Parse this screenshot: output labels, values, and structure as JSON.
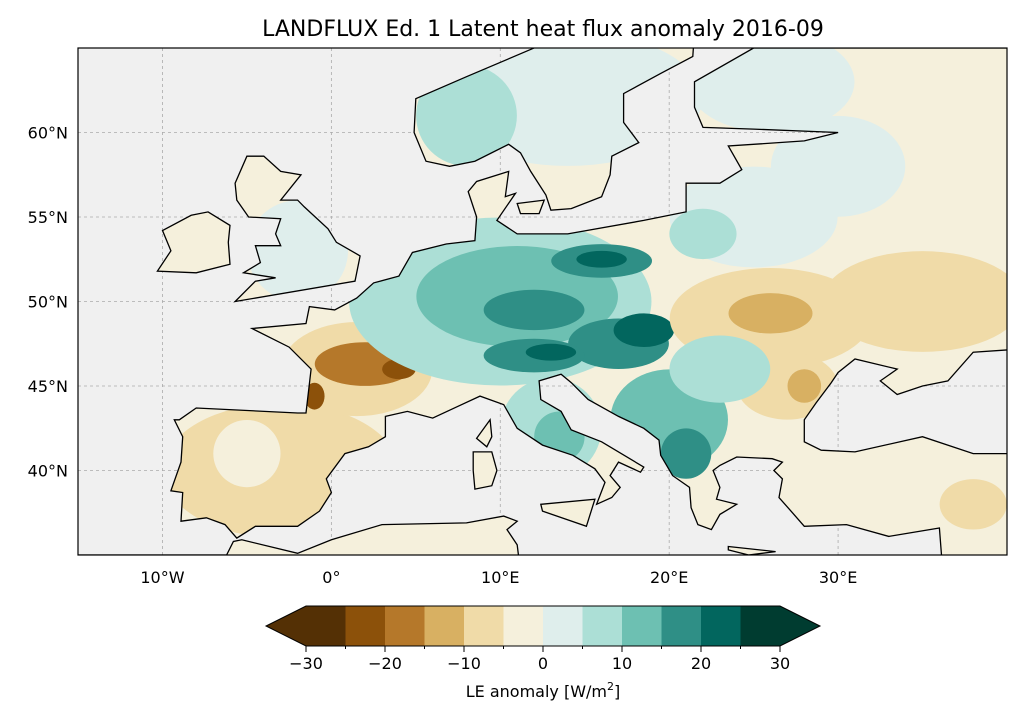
{
  "title": "LANDFLUX Ed. 1 Latent heat flux anomaly 2016-09",
  "map": {
    "extent": {
      "lon": [
        -15,
        40
      ],
      "lat": [
        35,
        65
      ]
    },
    "lon_ticks": [
      {
        "value": -10,
        "label": "10°W"
      },
      {
        "value": 0,
        "label": "0°"
      },
      {
        "value": 10,
        "label": "10°E"
      },
      {
        "value": 20,
        "label": "20°E"
      },
      {
        "value": 30,
        "label": "30°E"
      }
    ],
    "lat_ticks": [
      {
        "value": 60,
        "label": "60°N"
      },
      {
        "value": 55,
        "label": "55°N"
      },
      {
        "value": 50,
        "label": "50°N"
      },
      {
        "value": 45,
        "label": "45°N"
      },
      {
        "value": 40,
        "label": "40°N"
      }
    ],
    "background_color": "#f0f0f0",
    "coastline_color": "#000000"
  },
  "colorbar": {
    "label": "LE anomaly [W/m",
    "label_sup": "2",
    "label_end": "]",
    "levels": [
      -30,
      -25,
      -20,
      -15,
      -10,
      -5,
      0,
      5,
      10,
      15,
      20,
      25,
      30
    ],
    "colors": [
      "#543005",
      "#8c510a",
      "#b5782a",
      "#d8b062",
      "#f0dba8",
      "#f5f0dc",
      "#dfeeec",
      "#acdfd6",
      "#6dc0b2",
      "#2f8f86",
      "#02665e",
      "#003c30"
    ],
    "extend_low_color": "#543005",
    "extend_high_color": "#003c30",
    "tick_labels": [
      {
        "value": -30,
        "label": "−30"
      },
      {
        "value": -20,
        "label": "−20"
      },
      {
        "value": -10,
        "label": "−10"
      },
      {
        "value": 0,
        "label": "0"
      },
      {
        "value": 10,
        "label": "10"
      },
      {
        "value": 20,
        "label": "20"
      },
      {
        "value": 30,
        "label": "30"
      }
    ]
  }
}
